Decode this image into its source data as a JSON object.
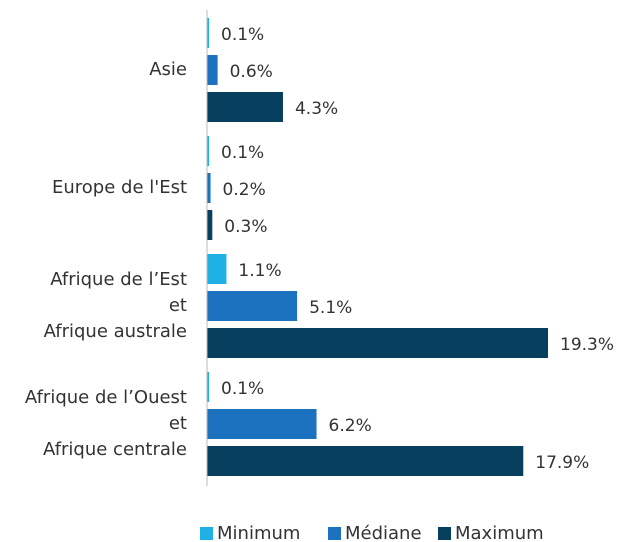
{
  "chart_data": {
    "type": "bar",
    "orientation": "horizontal",
    "categories": [
      "Asie",
      "Europe de l'Est",
      "Afrique de l’Est\net\nAfrique australe",
      "Afrique de l’Ouest\net\nAfrique centrale"
    ],
    "series": [
      {
        "name": "Minimum",
        "color": "#1fb0e6",
        "values": [
          0.1,
          0.1,
          1.1,
          0.1
        ],
        "value_labels": [
          "0.1%",
          "0.1%",
          "1.1%",
          "0.1%"
        ]
      },
      {
        "name": "Médiane",
        "color": "#1d72bf",
        "values": [
          0.6,
          0.2,
          5.1,
          6.2
        ],
        "value_labels": [
          "0.6%",
          "0.2%",
          "5.1%",
          "6.2%"
        ]
      },
      {
        "name": "Maximum",
        "color": "#073f5e",
        "values": [
          4.3,
          0.3,
          19.3,
          17.9
        ],
        "value_labels": [
          "4.3%",
          "0.3%",
          "19.3%",
          "17.9%"
        ]
      }
    ],
    "legend": "bottom"
  }
}
